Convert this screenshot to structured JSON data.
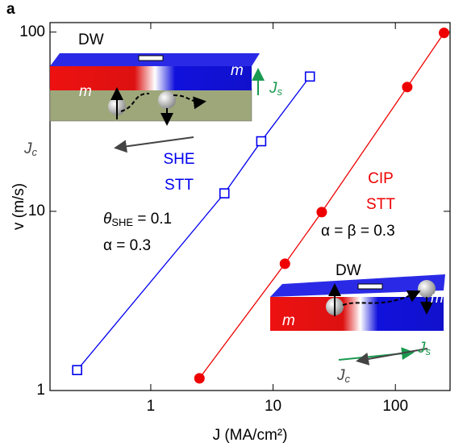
{
  "chart_data": {
    "type": "line",
    "panel_label": "a",
    "x_label": "J (MA/cm²)",
    "y_label": "v (m/s)",
    "log_x": true,
    "log_y": true,
    "xlim": [
      0.15,
      280
    ],
    "ylim": [
      1,
      113
    ],
    "xticks": [
      1,
      10,
      100
    ],
    "yticks": [
      1,
      10,
      100
    ],
    "series": [
      {
        "name": "SHE STT",
        "color": "#0000ee",
        "marker": "open-square",
        "x": [
          0.25,
          4,
          8,
          20
        ],
        "values": [
          1.3,
          12.6,
          24.6,
          56.5
        ]
      },
      {
        "name": "CIP STT",
        "color": "#ee0000",
        "marker": "filled-circle",
        "x": [
          2.5,
          12.5,
          25,
          125,
          250
        ],
        "values": [
          1.17,
          5.1,
          9.9,
          49.4,
          99
        ]
      }
    ],
    "annotations": {
      "she": [
        "SHE",
        "STT"
      ],
      "cip": [
        "CIP",
        "STT"
      ],
      "theta": {
        "symbol": "θ",
        "sub": "SHE",
        "rest": " = 0.1"
      },
      "alpha": "α = 0.3",
      "alpha_beta": "α = β = 0.3",
      "inset1": {
        "dw": "DW",
        "m": "m",
        "js": {
          "symbol": "J",
          "sub": "s"
        },
        "jc": {
          "symbol": "J",
          "sub": "c"
        }
      },
      "inset2": {
        "dw": "DW",
        "m": "m",
        "js": {
          "symbol": "J",
          "sub": "s"
        },
        "jc": {
          "symbol": "J",
          "sub": "c"
        }
      }
    }
  }
}
